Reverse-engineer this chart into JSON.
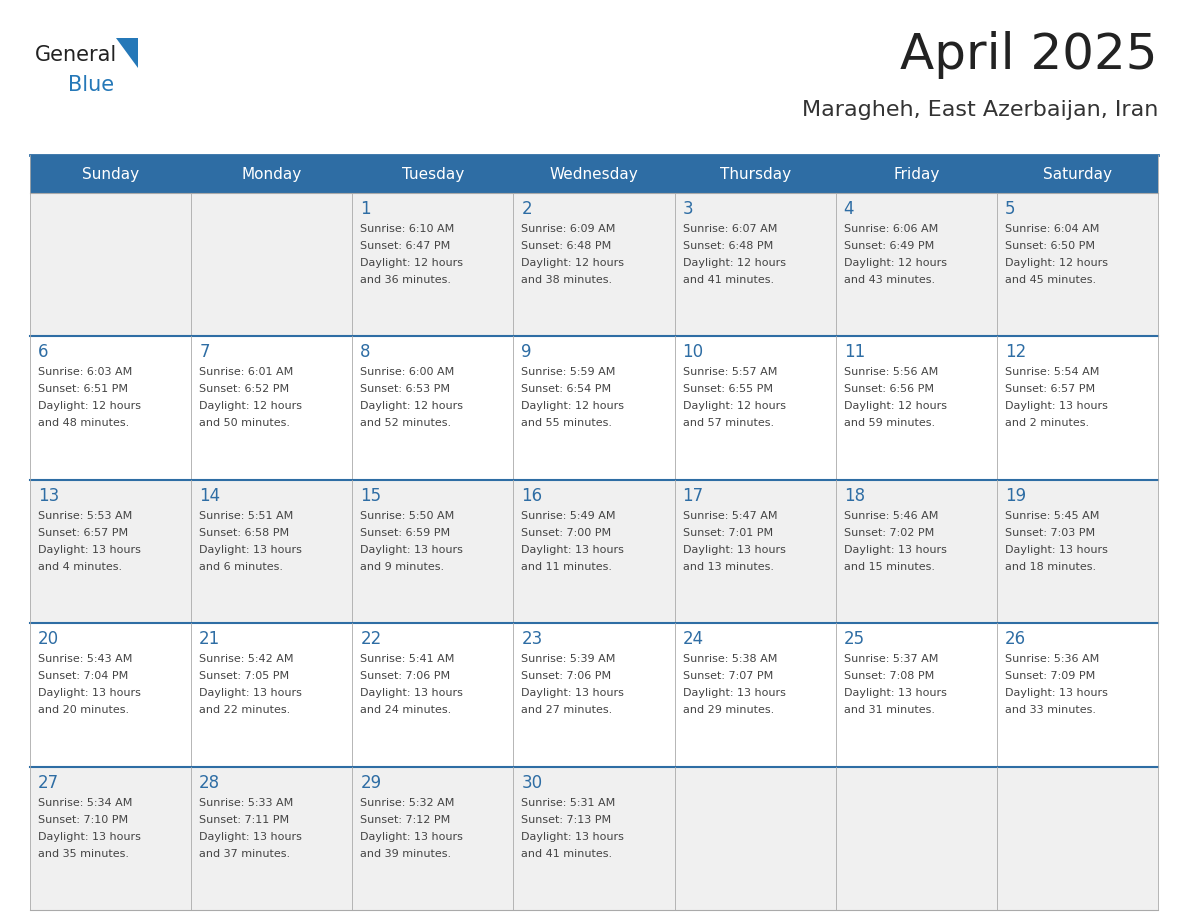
{
  "title": "April 2025",
  "subtitle": "Maragheh, East Azerbaijan, Iran",
  "days_of_week": [
    "Sunday",
    "Monday",
    "Tuesday",
    "Wednesday",
    "Thursday",
    "Friday",
    "Saturday"
  ],
  "header_bg": "#2e6da4",
  "header_text": "#ffffff",
  "row_bg_even": "#f0f0f0",
  "row_bg_odd": "#ffffff",
  "cell_border_color": "#aaaaaa",
  "day_number_color": "#2e6da4",
  "text_color": "#444444",
  "title_color": "#222222",
  "subtitle_color": "#333333",
  "logo_general_color": "#222222",
  "logo_blue_color": "#2578b8",
  "calendar": [
    [
      {
        "day": null,
        "sunrise": null,
        "sunset": null,
        "daylight": null
      },
      {
        "day": null,
        "sunrise": null,
        "sunset": null,
        "daylight": null
      },
      {
        "day": 1,
        "sunrise": "6:10 AM",
        "sunset": "6:47 PM",
        "daylight": "12 hours and 36 minutes."
      },
      {
        "day": 2,
        "sunrise": "6:09 AM",
        "sunset": "6:48 PM",
        "daylight": "12 hours and 38 minutes."
      },
      {
        "day": 3,
        "sunrise": "6:07 AM",
        "sunset": "6:48 PM",
        "daylight": "12 hours and 41 minutes."
      },
      {
        "day": 4,
        "sunrise": "6:06 AM",
        "sunset": "6:49 PM",
        "daylight": "12 hours and 43 minutes."
      },
      {
        "day": 5,
        "sunrise": "6:04 AM",
        "sunset": "6:50 PM",
        "daylight": "12 hours and 45 minutes."
      }
    ],
    [
      {
        "day": 6,
        "sunrise": "6:03 AM",
        "sunset": "6:51 PM",
        "daylight": "12 hours and 48 minutes."
      },
      {
        "day": 7,
        "sunrise": "6:01 AM",
        "sunset": "6:52 PM",
        "daylight": "12 hours and 50 minutes."
      },
      {
        "day": 8,
        "sunrise": "6:00 AM",
        "sunset": "6:53 PM",
        "daylight": "12 hours and 52 minutes."
      },
      {
        "day": 9,
        "sunrise": "5:59 AM",
        "sunset": "6:54 PM",
        "daylight": "12 hours and 55 minutes."
      },
      {
        "day": 10,
        "sunrise": "5:57 AM",
        "sunset": "6:55 PM",
        "daylight": "12 hours and 57 minutes."
      },
      {
        "day": 11,
        "sunrise": "5:56 AM",
        "sunset": "6:56 PM",
        "daylight": "12 hours and 59 minutes."
      },
      {
        "day": 12,
        "sunrise": "5:54 AM",
        "sunset": "6:57 PM",
        "daylight": "13 hours and 2 minutes."
      }
    ],
    [
      {
        "day": 13,
        "sunrise": "5:53 AM",
        "sunset": "6:57 PM",
        "daylight": "13 hours and 4 minutes."
      },
      {
        "day": 14,
        "sunrise": "5:51 AM",
        "sunset": "6:58 PM",
        "daylight": "13 hours and 6 minutes."
      },
      {
        "day": 15,
        "sunrise": "5:50 AM",
        "sunset": "6:59 PM",
        "daylight": "13 hours and 9 minutes."
      },
      {
        "day": 16,
        "sunrise": "5:49 AM",
        "sunset": "7:00 PM",
        "daylight": "13 hours and 11 minutes."
      },
      {
        "day": 17,
        "sunrise": "5:47 AM",
        "sunset": "7:01 PM",
        "daylight": "13 hours and 13 minutes."
      },
      {
        "day": 18,
        "sunrise": "5:46 AM",
        "sunset": "7:02 PM",
        "daylight": "13 hours and 15 minutes."
      },
      {
        "day": 19,
        "sunrise": "5:45 AM",
        "sunset": "7:03 PM",
        "daylight": "13 hours and 18 minutes."
      }
    ],
    [
      {
        "day": 20,
        "sunrise": "5:43 AM",
        "sunset": "7:04 PM",
        "daylight": "13 hours and 20 minutes."
      },
      {
        "day": 21,
        "sunrise": "5:42 AM",
        "sunset": "7:05 PM",
        "daylight": "13 hours and 22 minutes."
      },
      {
        "day": 22,
        "sunrise": "5:41 AM",
        "sunset": "7:06 PM",
        "daylight": "13 hours and 24 minutes."
      },
      {
        "day": 23,
        "sunrise": "5:39 AM",
        "sunset": "7:06 PM",
        "daylight": "13 hours and 27 minutes."
      },
      {
        "day": 24,
        "sunrise": "5:38 AM",
        "sunset": "7:07 PM",
        "daylight": "13 hours and 29 minutes."
      },
      {
        "day": 25,
        "sunrise": "5:37 AM",
        "sunset": "7:08 PM",
        "daylight": "13 hours and 31 minutes."
      },
      {
        "day": 26,
        "sunrise": "5:36 AM",
        "sunset": "7:09 PM",
        "daylight": "13 hours and 33 minutes."
      }
    ],
    [
      {
        "day": 27,
        "sunrise": "5:34 AM",
        "sunset": "7:10 PM",
        "daylight": "13 hours and 35 minutes."
      },
      {
        "day": 28,
        "sunrise": "5:33 AM",
        "sunset": "7:11 PM",
        "daylight": "13 hours and 37 minutes."
      },
      {
        "day": 29,
        "sunrise": "5:32 AM",
        "sunset": "7:12 PM",
        "daylight": "13 hours and 39 minutes."
      },
      {
        "day": 30,
        "sunrise": "5:31 AM",
        "sunset": "7:13 PM",
        "daylight": "13 hours and 41 minutes."
      },
      {
        "day": null,
        "sunrise": null,
        "sunset": null,
        "daylight": null
      },
      {
        "day": null,
        "sunrise": null,
        "sunset": null,
        "daylight": null
      },
      {
        "day": null,
        "sunrise": null,
        "sunset": null,
        "daylight": null
      }
    ]
  ]
}
